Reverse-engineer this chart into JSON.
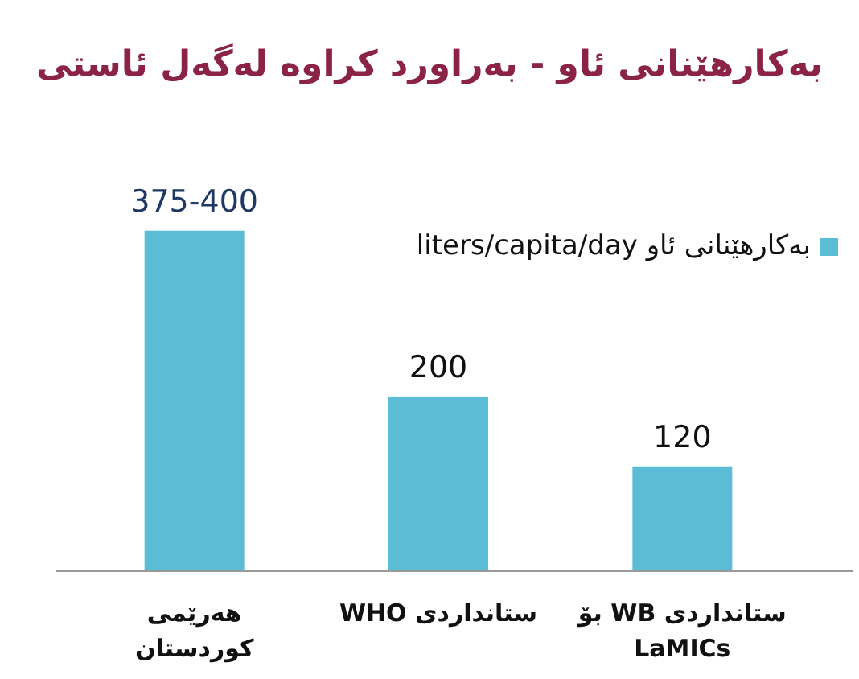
{
  "chart_data": {
    "type": "bar",
    "title": "بەکارهێنانی ئاو - بەراورد کراوە لەگەل ئاستی",
    "categories": [
      "هەرێمی کوردستان",
      "ستانداردی WHO",
      "ستانداردی WB بۆ LaMICs"
    ],
    "series": [
      {
        "name": "بەکارهێنانی ئاو liters/capita/day",
        "color": "#5bbcd6",
        "values": [
          390,
          200,
          120
        ],
        "value_labels": [
          "375-400",
          "200",
          "120"
        ]
      }
    ],
    "legend": "right"
  }
}
